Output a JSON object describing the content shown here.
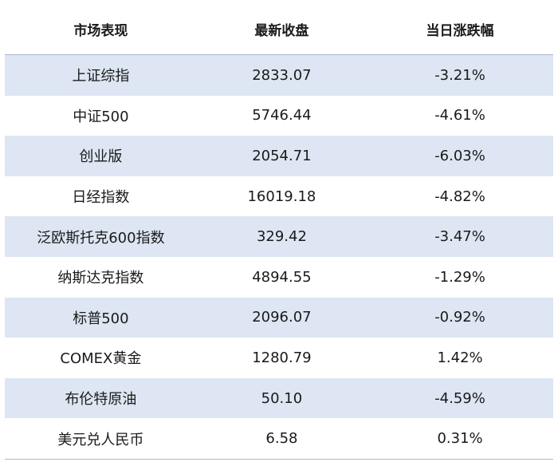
{
  "chart_data": {
    "type": "table",
    "columns": [
      "市场表现",
      "最新收盘",
      "当日涨跌幅"
    ],
    "rows": [
      {
        "market": "上证综指",
        "close": "2833.07",
        "change": "-3.21%"
      },
      {
        "market": "中证500",
        "close": "5746.44",
        "change": "-4.61%"
      },
      {
        "market": "创业版",
        "close": "2054.71",
        "change": "-6.03%"
      },
      {
        "market": "日经指数",
        "close": "16019.18",
        "change": "-4.82%"
      },
      {
        "market": "泛欧斯托克600指数",
        "close": "329.42",
        "change": "-3.47%"
      },
      {
        "market": "纳斯达克指数",
        "close": "4894.55",
        "change": "-1.29%"
      },
      {
        "market": "标普500",
        "close": "2096.07",
        "change": "-0.92%"
      },
      {
        "market": "COMEX黄金",
        "close": "1280.79",
        "change": "1.42%"
      },
      {
        "market": "布伦特原油",
        "close": "50.10",
        "change": "-4.59%"
      },
      {
        "market": "美元兑人民币",
        "close": "6.58",
        "change": "0.31%"
      }
    ]
  },
  "colors": {
    "shaded_row": "#dde6f2",
    "border": "#a9b8cf"
  }
}
